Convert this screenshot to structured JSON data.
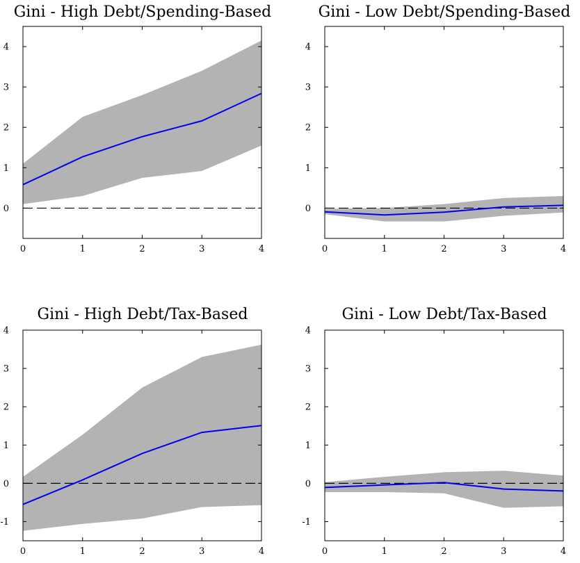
{
  "chart_data": [
    {
      "type": "line",
      "title": "Gini - High Debt/Spending-Based",
      "x": [
        0,
        1,
        2,
        3,
        4
      ],
      "series": [
        {
          "values": [
            0.58,
            1.27,
            1.77,
            2.16,
            2.84
          ]
        }
      ],
      "band": {
        "lower": [
          0.1,
          0.3,
          0.75,
          0.92,
          1.55
        ],
        "upper": [
          1.1,
          2.26,
          2.8,
          3.4,
          4.15
        ]
      },
      "reference_line": 0,
      "xlim": [
        0,
        4
      ],
      "ylim": [
        -0.75,
        4.5
      ],
      "xticks": [
        0,
        1,
        2,
        3,
        4
      ],
      "yticks": [
        0,
        1,
        2,
        3,
        4
      ],
      "grid": false,
      "colors": {
        "line": "#0000ee",
        "band": "#b3b3b3",
        "reference": "#000000"
      }
    },
    {
      "type": "line",
      "title": "Gini - Low Debt/Spending-Based",
      "x": [
        0,
        1,
        2,
        3,
        4
      ],
      "series": [
        {
          "values": [
            -0.09,
            -0.17,
            -0.1,
            0.03,
            0.07
          ]
        }
      ],
      "band": {
        "lower": [
          -0.15,
          -0.33,
          -0.33,
          -0.19,
          -0.11
        ],
        "upper": [
          -0.02,
          0.0,
          0.1,
          0.25,
          0.3
        ]
      },
      "reference_line": 0,
      "xlim": [
        0,
        4
      ],
      "ylim": [
        -0.75,
        4.5
      ],
      "xticks": [
        0,
        1,
        2,
        3,
        4
      ],
      "yticks": [
        0,
        1,
        2,
        3,
        4
      ],
      "grid": false,
      "colors": {
        "line": "#0000ee",
        "band": "#b3b3b3",
        "reference": "#000000"
      }
    },
    {
      "type": "line",
      "title": "Gini - High Debt/Tax-Based",
      "x": [
        0,
        1,
        2,
        3,
        4
      ],
      "series": [
        {
          "values": [
            -0.55,
            0.09,
            0.78,
            1.33,
            1.51
          ]
        }
      ],
      "band": {
        "lower": [
          -1.24,
          -1.06,
          -0.92,
          -0.62,
          -0.57
        ],
        "upper": [
          0.17,
          1.27,
          2.5,
          3.3,
          3.62
        ]
      },
      "reference_line": 0,
      "xlim": [
        0,
        4
      ],
      "ylim": [
        -1.5,
        4
      ],
      "xticks": [
        0,
        1,
        2,
        3,
        4
      ],
      "yticks": [
        -1,
        0,
        1,
        2,
        3,
        4
      ],
      "grid": false,
      "colors": {
        "line": "#0000ee",
        "band": "#b3b3b3",
        "reference": "#000000"
      }
    },
    {
      "type": "line",
      "title": "Gini - Low Debt/Tax-Based",
      "x": [
        0,
        1,
        2,
        3,
        4
      ],
      "series": [
        {
          "values": [
            -0.11,
            -0.04,
            0.02,
            -0.15,
            -0.2
          ]
        }
      ],
      "band": {
        "lower": [
          -0.23,
          -0.23,
          -0.26,
          -0.64,
          -0.6
        ],
        "upper": [
          0.03,
          0.17,
          0.29,
          0.33,
          0.2
        ]
      },
      "reference_line": 0,
      "xlim": [
        0,
        4
      ],
      "ylim": [
        -1.5,
        4
      ],
      "xticks": [
        0,
        1,
        2,
        3,
        4
      ],
      "yticks": [
        -1,
        0,
        1,
        2,
        3,
        4
      ],
      "grid": false,
      "colors": {
        "line": "#0000ee",
        "band": "#b3b3b3",
        "reference": "#000000"
      }
    }
  ]
}
